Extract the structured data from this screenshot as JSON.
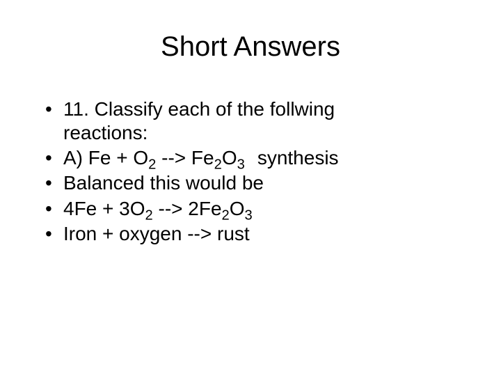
{
  "title_fontsize": 40,
  "body_fontsize": 28,
  "text_color": "#000000",
  "background_color": "#ffffff",
  "font_family": "Arial",
  "title": "Short Answers",
  "bullets": {
    "b1_line1": "11. Classify each of the follwing",
    "b1_line2": "reactions:",
    "b2_pre": "A) Fe + O",
    "b2_sub1": "2",
    "b2_mid": " --> Fe",
    "b2_sub2": "2",
    "b2_mid2": "O",
    "b2_sub3": "3",
    "b2_tail": "synthesis",
    "b3": "Balanced this would be",
    "b4_p1": "4Fe + 3O",
    "b4_s1": "2",
    "b4_p2": " --> 2Fe",
    "b4_s2": "2",
    "b4_p3": "O",
    "b4_s3": "3",
    "b5": "Iron + oxygen --> rust"
  }
}
